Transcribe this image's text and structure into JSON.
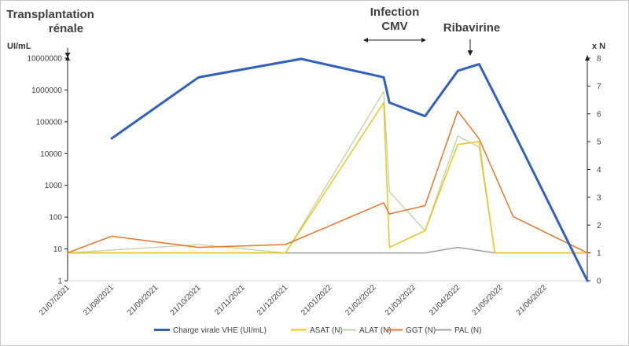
{
  "chart_data": {
    "type": "line",
    "y_left": {
      "label": "UI/mL",
      "scale": "log",
      "range": [
        1,
        10000000
      ],
      "ticks": [
        "1",
        "10",
        "100",
        "1000",
        "10000",
        "100000",
        "1000000",
        "10000000"
      ]
    },
    "y_right": {
      "label": "x N",
      "range": [
        0,
        8
      ],
      "ticks": [
        "0",
        "1",
        "2",
        "3",
        "4",
        "5",
        "6",
        "7",
        "8"
      ]
    },
    "x_axis": {
      "ticks": [
        "21/07/2021",
        "21/08/2021",
        "21/09/2021",
        "21/10/2021",
        "21/11/2021",
        "21/12/2021",
        "21/01/2022",
        "21/02/2022",
        "21/03/2022",
        "21/04/2022",
        "21/05/2022",
        "21/06/2022"
      ],
      "range": [
        "2021-07-21",
        "2022-07-21"
      ]
    },
    "annotations": [
      {
        "text": [
          "Transplantation",
          "rénale"
        ],
        "date": "2021-07-21",
        "marker": "down-arrow"
      },
      {
        "text": [
          "Infection",
          "CMV"
        ],
        "date_range": [
          "2022-02-11",
          "2022-03-22"
        ],
        "marker": "double-arrow"
      },
      {
        "text": [
          "Ribavirine"
        ],
        "date": "2022-04-12",
        "marker": "down-arrow"
      }
    ],
    "series": [
      {
        "name": "Charge virale VHE (UI/mL)",
        "axis": "left",
        "color": "#3060c0",
        "width": 3,
        "points": [
          [
            "2021-08-21",
            30000
          ],
          [
            "2021-10-21",
            2500000
          ],
          [
            "2022-01-01",
            9500000
          ],
          [
            "2022-02-28",
            2500000
          ],
          [
            "2022-03-04",
            400000
          ],
          [
            "2022-03-29",
            150000
          ],
          [
            "2022-04-21",
            4000000
          ],
          [
            "2022-05-06",
            6500000
          ],
          [
            "2022-05-30",
            50000
          ],
          [
            "2022-07-21",
            1
          ]
        ]
      },
      {
        "name": "ASAT (N)",
        "axis": "right",
        "color": "#f2c418",
        "width": 1.5,
        "points": [
          [
            "2021-07-21",
            1
          ],
          [
            "2021-12-21",
            1
          ],
          [
            "2022-02-28",
            6.4
          ],
          [
            "2022-03-04",
            1.2
          ],
          [
            "2022-03-29",
            1.8
          ],
          [
            "2022-04-21",
            4.9
          ],
          [
            "2022-05-06",
            5
          ],
          [
            "2022-05-17",
            1
          ],
          [
            "2022-07-21",
            1
          ]
        ]
      },
      {
        "name": "ALAT (N)",
        "axis": "right",
        "color": "#bcd4a2",
        "width": 1.3,
        "points": [
          [
            "2021-07-21",
            1
          ],
          [
            "2021-10-21",
            1.3
          ],
          [
            "2021-12-21",
            1
          ],
          [
            "2022-02-28",
            6.8
          ],
          [
            "2022-03-04",
            3.2
          ],
          [
            "2022-03-29",
            1.8
          ],
          [
            "2022-04-21",
            5.2
          ],
          [
            "2022-05-06",
            4.8
          ],
          [
            "2022-05-17",
            1
          ],
          [
            "2022-07-21",
            1
          ]
        ]
      },
      {
        "name": "GGT (N)",
        "axis": "right",
        "color": "#e8762a",
        "width": 1.5,
        "points": [
          [
            "2021-07-21",
            1
          ],
          [
            "2021-08-21",
            1.6
          ],
          [
            "2021-10-21",
            1.2
          ],
          [
            "2021-12-21",
            1.3
          ],
          [
            "2022-02-28",
            2.8
          ],
          [
            "2022-03-04",
            2.4
          ],
          [
            "2022-03-29",
            2.7
          ],
          [
            "2022-04-21",
            6.1
          ],
          [
            "2022-05-06",
            5.1
          ],
          [
            "2022-05-30",
            2.3
          ],
          [
            "2022-07-21",
            1
          ]
        ]
      },
      {
        "name": "PAL (N)",
        "axis": "right",
        "color": "#a0a0a0",
        "width": 1.5,
        "points": [
          [
            "2021-07-21",
            1
          ],
          [
            "2022-03-29",
            1
          ],
          [
            "2022-04-21",
            1.2
          ],
          [
            "2022-05-17",
            1
          ],
          [
            "2022-07-21",
            1
          ]
        ]
      }
    ],
    "legend": "bottom",
    "grid": false
  }
}
